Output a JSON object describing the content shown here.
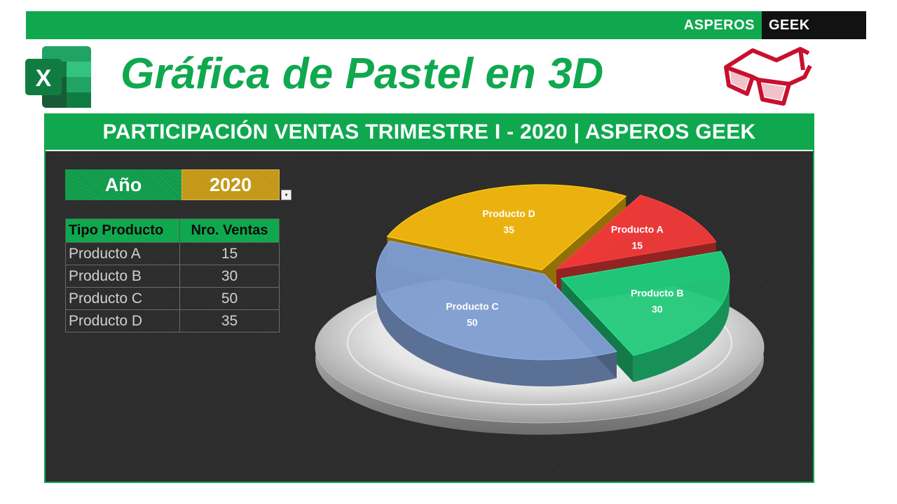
{
  "brand": {
    "left": "ASPEROS",
    "right": "GEEK"
  },
  "title": "Gráfica de Pastel en 3D",
  "colors": {
    "accent": "#10a84f",
    "panel": "#2b2b2b",
    "select": "#c29613"
  },
  "panel": {
    "header": "PARTICIPACIÓN VENTAS TRIMESTRE I - 2020 | ASPEROS GEEK",
    "year_label": "Año",
    "year_value": "2020",
    "table": {
      "headers": [
        "Tipo Producto",
        "Nro. Ventas"
      ],
      "rows": [
        [
          "Producto A",
          "15"
        ],
        [
          "Producto B",
          "30"
        ],
        [
          "Producto C",
          "50"
        ],
        [
          "Producto D",
          "35"
        ]
      ]
    }
  },
  "chart_data": {
    "type": "pie",
    "title": "",
    "labels": [
      "Producto A",
      "Producto B",
      "Producto C",
      "Producto D"
    ],
    "values": [
      15,
      30,
      50,
      35
    ],
    "colors": [
      "#f23a3a",
      "#22c97a",
      "#7d9ccf",
      "#f5b90e"
    ],
    "style": "3d",
    "data_labels": true
  }
}
